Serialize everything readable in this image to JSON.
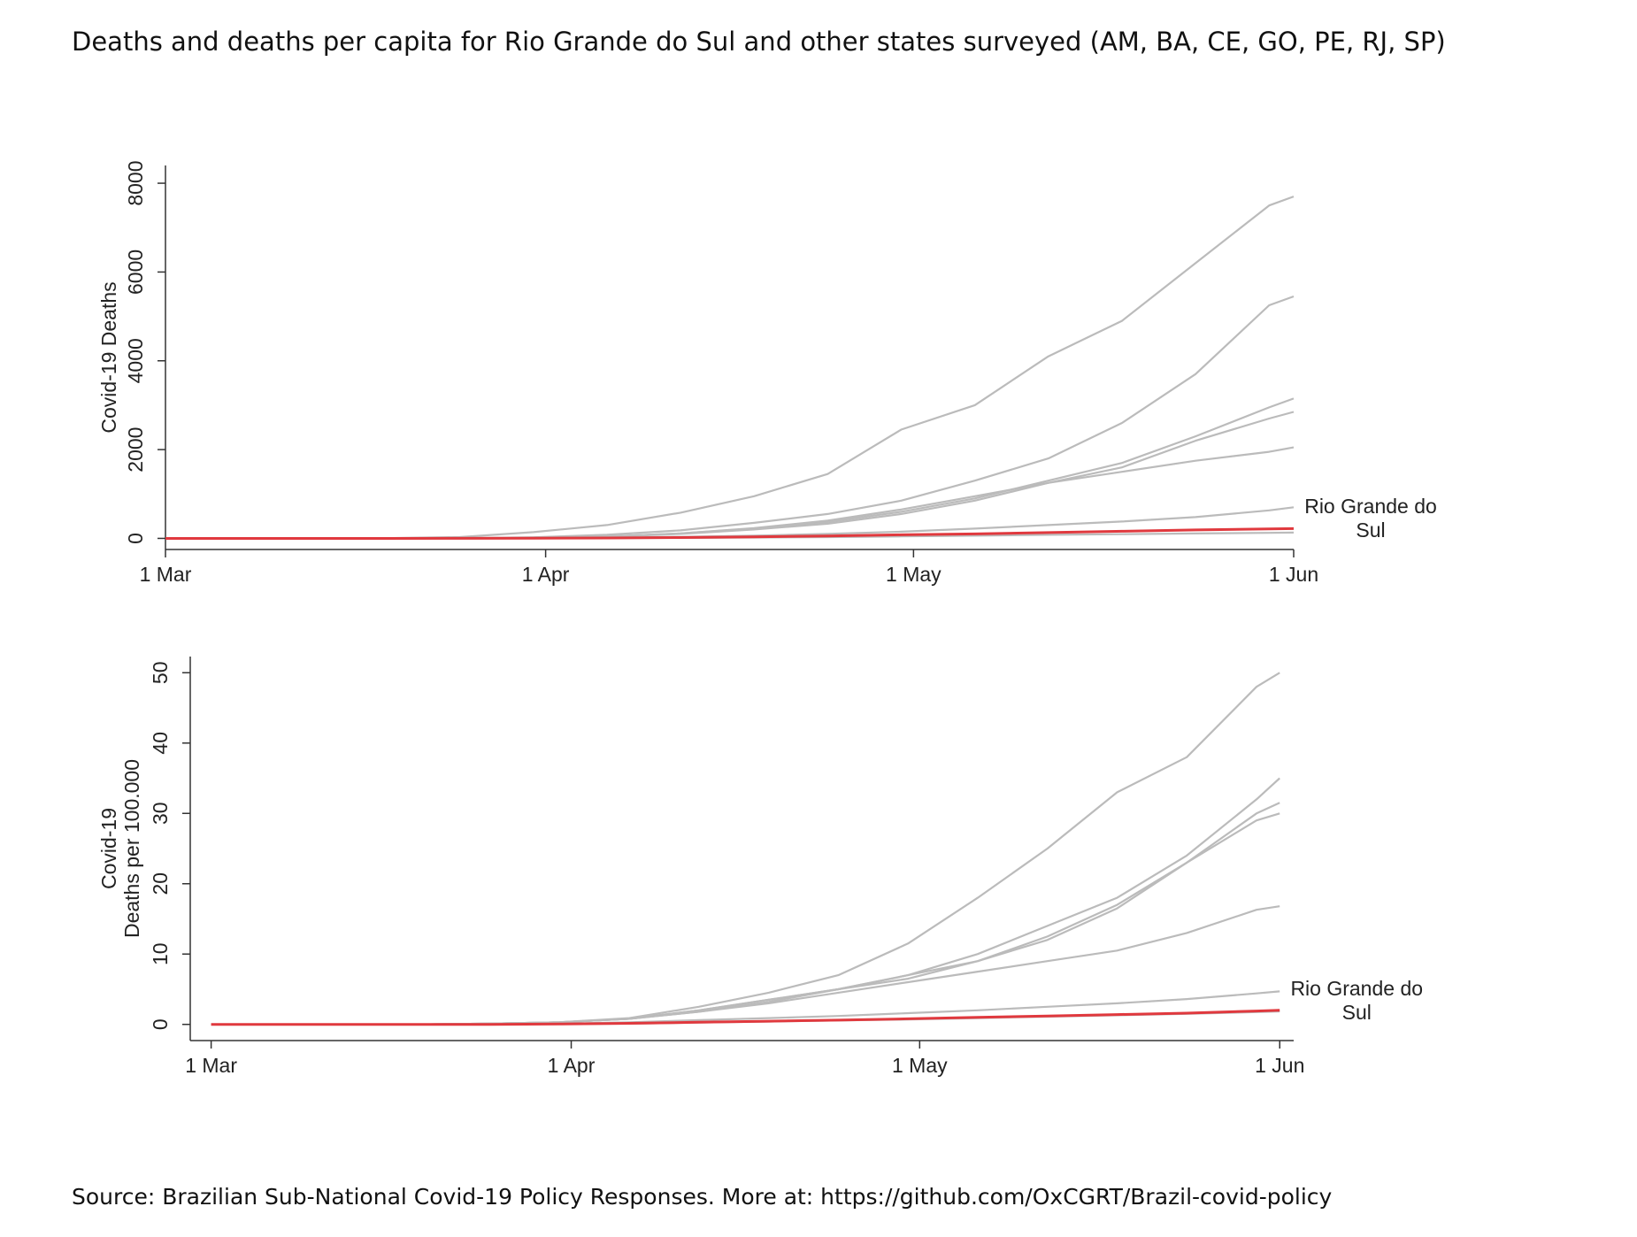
{
  "title": "Deaths and deaths per capita for Rio Grande do Sul and other states surveyed (AM, BA, CE, GO, PE, RJ, SP)",
  "source": "Source: Brazilian Sub-National Covid-19 Policy Responses. More at: https://github.com/OxCGRT/Brazil-covid-policy",
  "chart_data": [
    {
      "type": "line",
      "ylabel": [
        "Covid-19 Deaths"
      ],
      "x": [
        0,
        6,
        12,
        18,
        24,
        30,
        36,
        42,
        48,
        54,
        60,
        66,
        72,
        78,
        84,
        90,
        92
      ],
      "xlim": [
        0,
        92
      ],
      "xticks": [
        {
          "value": 0,
          "label": "1 Mar"
        },
        {
          "value": 31,
          "label": "1 Apr"
        },
        {
          "value": 61,
          "label": "1 May"
        },
        {
          "value": 92,
          "label": "1 Jun"
        }
      ],
      "ylim": [
        -250,
        8400
      ],
      "yticks": [
        0,
        2000,
        4000,
        6000,
        8000
      ],
      "series": [
        {
          "color": "#bbbbbb",
          "values": [
            0,
            0,
            0,
            5,
            30,
            140,
            300,
            580,
            950,
            1450,
            2450,
            3000,
            4100,
            4900,
            6200,
            7500,
            7700
          ]
        },
        {
          "color": "#bbbbbb",
          "values": [
            0,
            0,
            0,
            0,
            5,
            25,
            80,
            180,
            350,
            550,
            850,
            1300,
            1800,
            2600,
            3700,
            5250,
            5450
          ]
        },
        {
          "color": "#bbbbbb",
          "values": [
            0,
            0,
            0,
            0,
            2,
            10,
            40,
            110,
            220,
            370,
            600,
            900,
            1300,
            1700,
            2300,
            2950,
            3150
          ]
        },
        {
          "color": "#bbbbbb",
          "values": [
            0,
            0,
            0,
            0,
            2,
            10,
            35,
            100,
            200,
            330,
            550,
            850,
            1250,
            1600,
            2200,
            2700,
            2850
          ]
        },
        {
          "color": "#bbbbbb",
          "values": [
            0,
            0,
            0,
            0,
            2,
            10,
            40,
            110,
            230,
            400,
            650,
            950,
            1250,
            1500,
            1750,
            1950,
            2050
          ]
        },
        {
          "color": "#bbbbbb",
          "values": [
            0,
            0,
            0,
            0,
            1,
            5,
            15,
            35,
            60,
            100,
            150,
            220,
            300,
            380,
            480,
            630,
            700
          ]
        },
        {
          "color": "#bbbbbb",
          "values": [
            0,
            0,
            0,
            0,
            0,
            2,
            6,
            12,
            20,
            30,
            45,
            60,
            80,
            95,
            110,
            125,
            130
          ]
        },
        {
          "name": "Rio Grande do Sul",
          "color": "#e0393e",
          "values": [
            0,
            0,
            0,
            0,
            1,
            3,
            10,
            20,
            35,
            55,
            80,
            100,
            130,
            160,
            190,
            215,
            220
          ]
        }
      ]
    },
    {
      "type": "line",
      "ylabel": [
        "Covid-19",
        "Deaths per 100.000"
      ],
      "x": [
        0,
        6,
        12,
        18,
        24,
        30,
        36,
        42,
        48,
        54,
        60,
        66,
        72,
        78,
        84,
        90,
        92
      ],
      "xlim": [
        -1.8,
        93.2
      ],
      "xticks": [
        {
          "value": 0,
          "label": "1 Mar"
        },
        {
          "value": 31,
          "label": "1 Apr"
        },
        {
          "value": 61,
          "label": "1 May"
        },
        {
          "value": 92,
          "label": "1 Jun"
        }
      ],
      "ylim": [
        -2.3,
        52.3
      ],
      "yticks": [
        0,
        10,
        20,
        30,
        40,
        50
      ],
      "series": [
        {
          "color": "#bbbbbb",
          "values": [
            0,
            0,
            0,
            0,
            0.1,
            0.3,
            0.9,
            2.5,
            4.5,
            7,
            11.5,
            18,
            25,
            33,
            38,
            48,
            50
          ]
        },
        {
          "color": "#bbbbbb",
          "values": [
            0,
            0,
            0,
            0,
            0.1,
            0.3,
            0.8,
            2,
            3.5,
            5,
            7,
            10,
            14,
            18,
            24,
            32,
            35
          ]
        },
        {
          "color": "#bbbbbb",
          "values": [
            0,
            0,
            0,
            0,
            0.1,
            0.3,
            0.8,
            2,
            3.5,
            5,
            7,
            9,
            12.5,
            17,
            23,
            30,
            31.5
          ]
        },
        {
          "color": "#bbbbbb",
          "values": [
            0,
            0,
            0,
            0,
            0.1,
            0.3,
            0.8,
            1.8,
            3.2,
            5,
            6.5,
            9,
            12,
            16.5,
            23,
            29,
            30
          ]
        },
        {
          "color": "#bbbbbb",
          "values": [
            0,
            0,
            0,
            0,
            0.1,
            0.3,
            0.8,
            1.8,
            3,
            4.5,
            6,
            7.5,
            9,
            10.5,
            13,
            16.3,
            16.8
          ]
        },
        {
          "color": "#bbbbbb",
          "values": [
            0,
            0,
            0,
            0,
            0,
            0.1,
            0.3,
            0.6,
            0.9,
            1.2,
            1.6,
            2,
            2.5,
            3,
            3.6,
            4.4,
            4.7
          ]
        },
        {
          "color": "#bbbbbb",
          "values": [
            0,
            0,
            0,
            0,
            0,
            0.05,
            0.1,
            0.25,
            0.4,
            0.55,
            0.7,
            0.9,
            1.1,
            1.3,
            1.5,
            1.75,
            1.85
          ]
        },
        {
          "name": "Rio Grande do Sul",
          "color": "#e0393e",
          "values": [
            0,
            0,
            0,
            0,
            0,
            0.05,
            0.15,
            0.3,
            0.45,
            0.6,
            0.8,
            1,
            1.2,
            1.4,
            1.6,
            1.9,
            2.0
          ]
        }
      ]
    }
  ]
}
